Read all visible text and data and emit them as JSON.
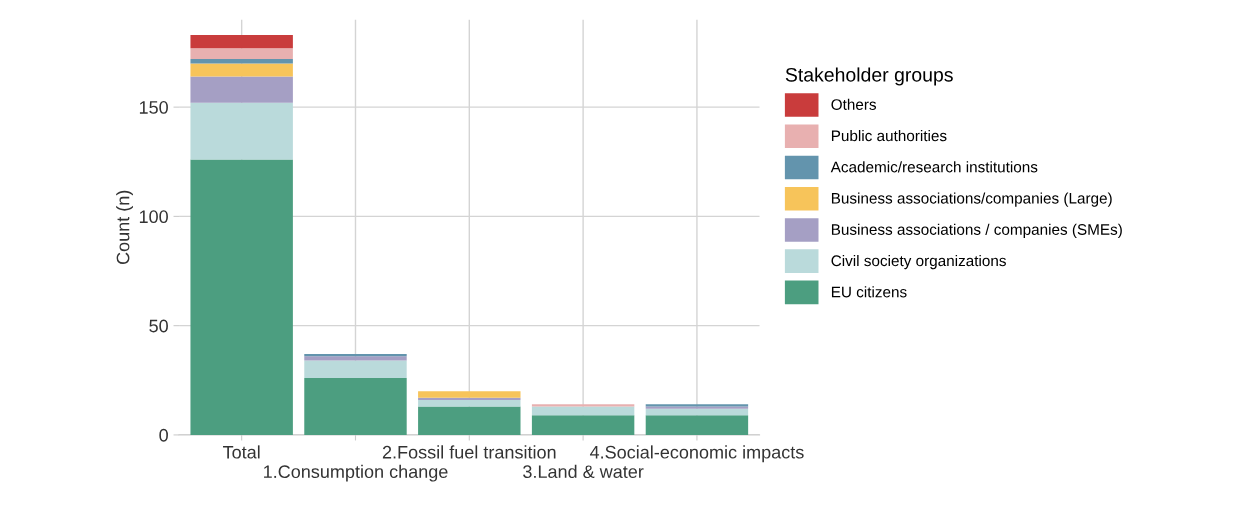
{
  "chart_data": {
    "type": "bar",
    "stacked": true,
    "ylabel": "Count (n)",
    "legend_title": "Stakeholder groups",
    "categories": [
      "Total",
      "1.Consumption change",
      "2.Fossil fuel transition",
      "3.Land & water",
      "4.Social-economic impacts"
    ],
    "series": [
      {
        "name": "EU citizens",
        "color": "#4c9e80",
        "values": [
          126,
          26,
          13,
          9,
          9
        ]
      },
      {
        "name": "Civil society organizations",
        "color": "#badadb",
        "values": [
          26,
          8,
          3,
          4,
          3
        ]
      },
      {
        "name": "Business associations / companies (SMEs)",
        "color": "#a59fc4",
        "values": [
          12,
          2,
          1,
          0,
          1
        ]
      },
      {
        "name": "Business associations/companies (Large)",
        "color": "#f7c45a",
        "values": [
          6,
          0,
          3,
          0,
          0
        ]
      },
      {
        "name": "Academic/research institutions",
        "color": "#6394ad",
        "values": [
          2,
          1,
          0,
          0,
          1
        ]
      },
      {
        "name": "Public authorities",
        "color": "#e8b0b0",
        "values": [
          5,
          0,
          0,
          1,
          0
        ]
      },
      {
        "name": "Others",
        "color": "#c93c3c",
        "values": [
          6,
          0,
          0,
          0,
          0
        ]
      }
    ],
    "ylim": [
      0,
      190
    ],
    "yticks": [
      0,
      50,
      100,
      150
    ],
    "grid": true,
    "legend": "right"
  }
}
